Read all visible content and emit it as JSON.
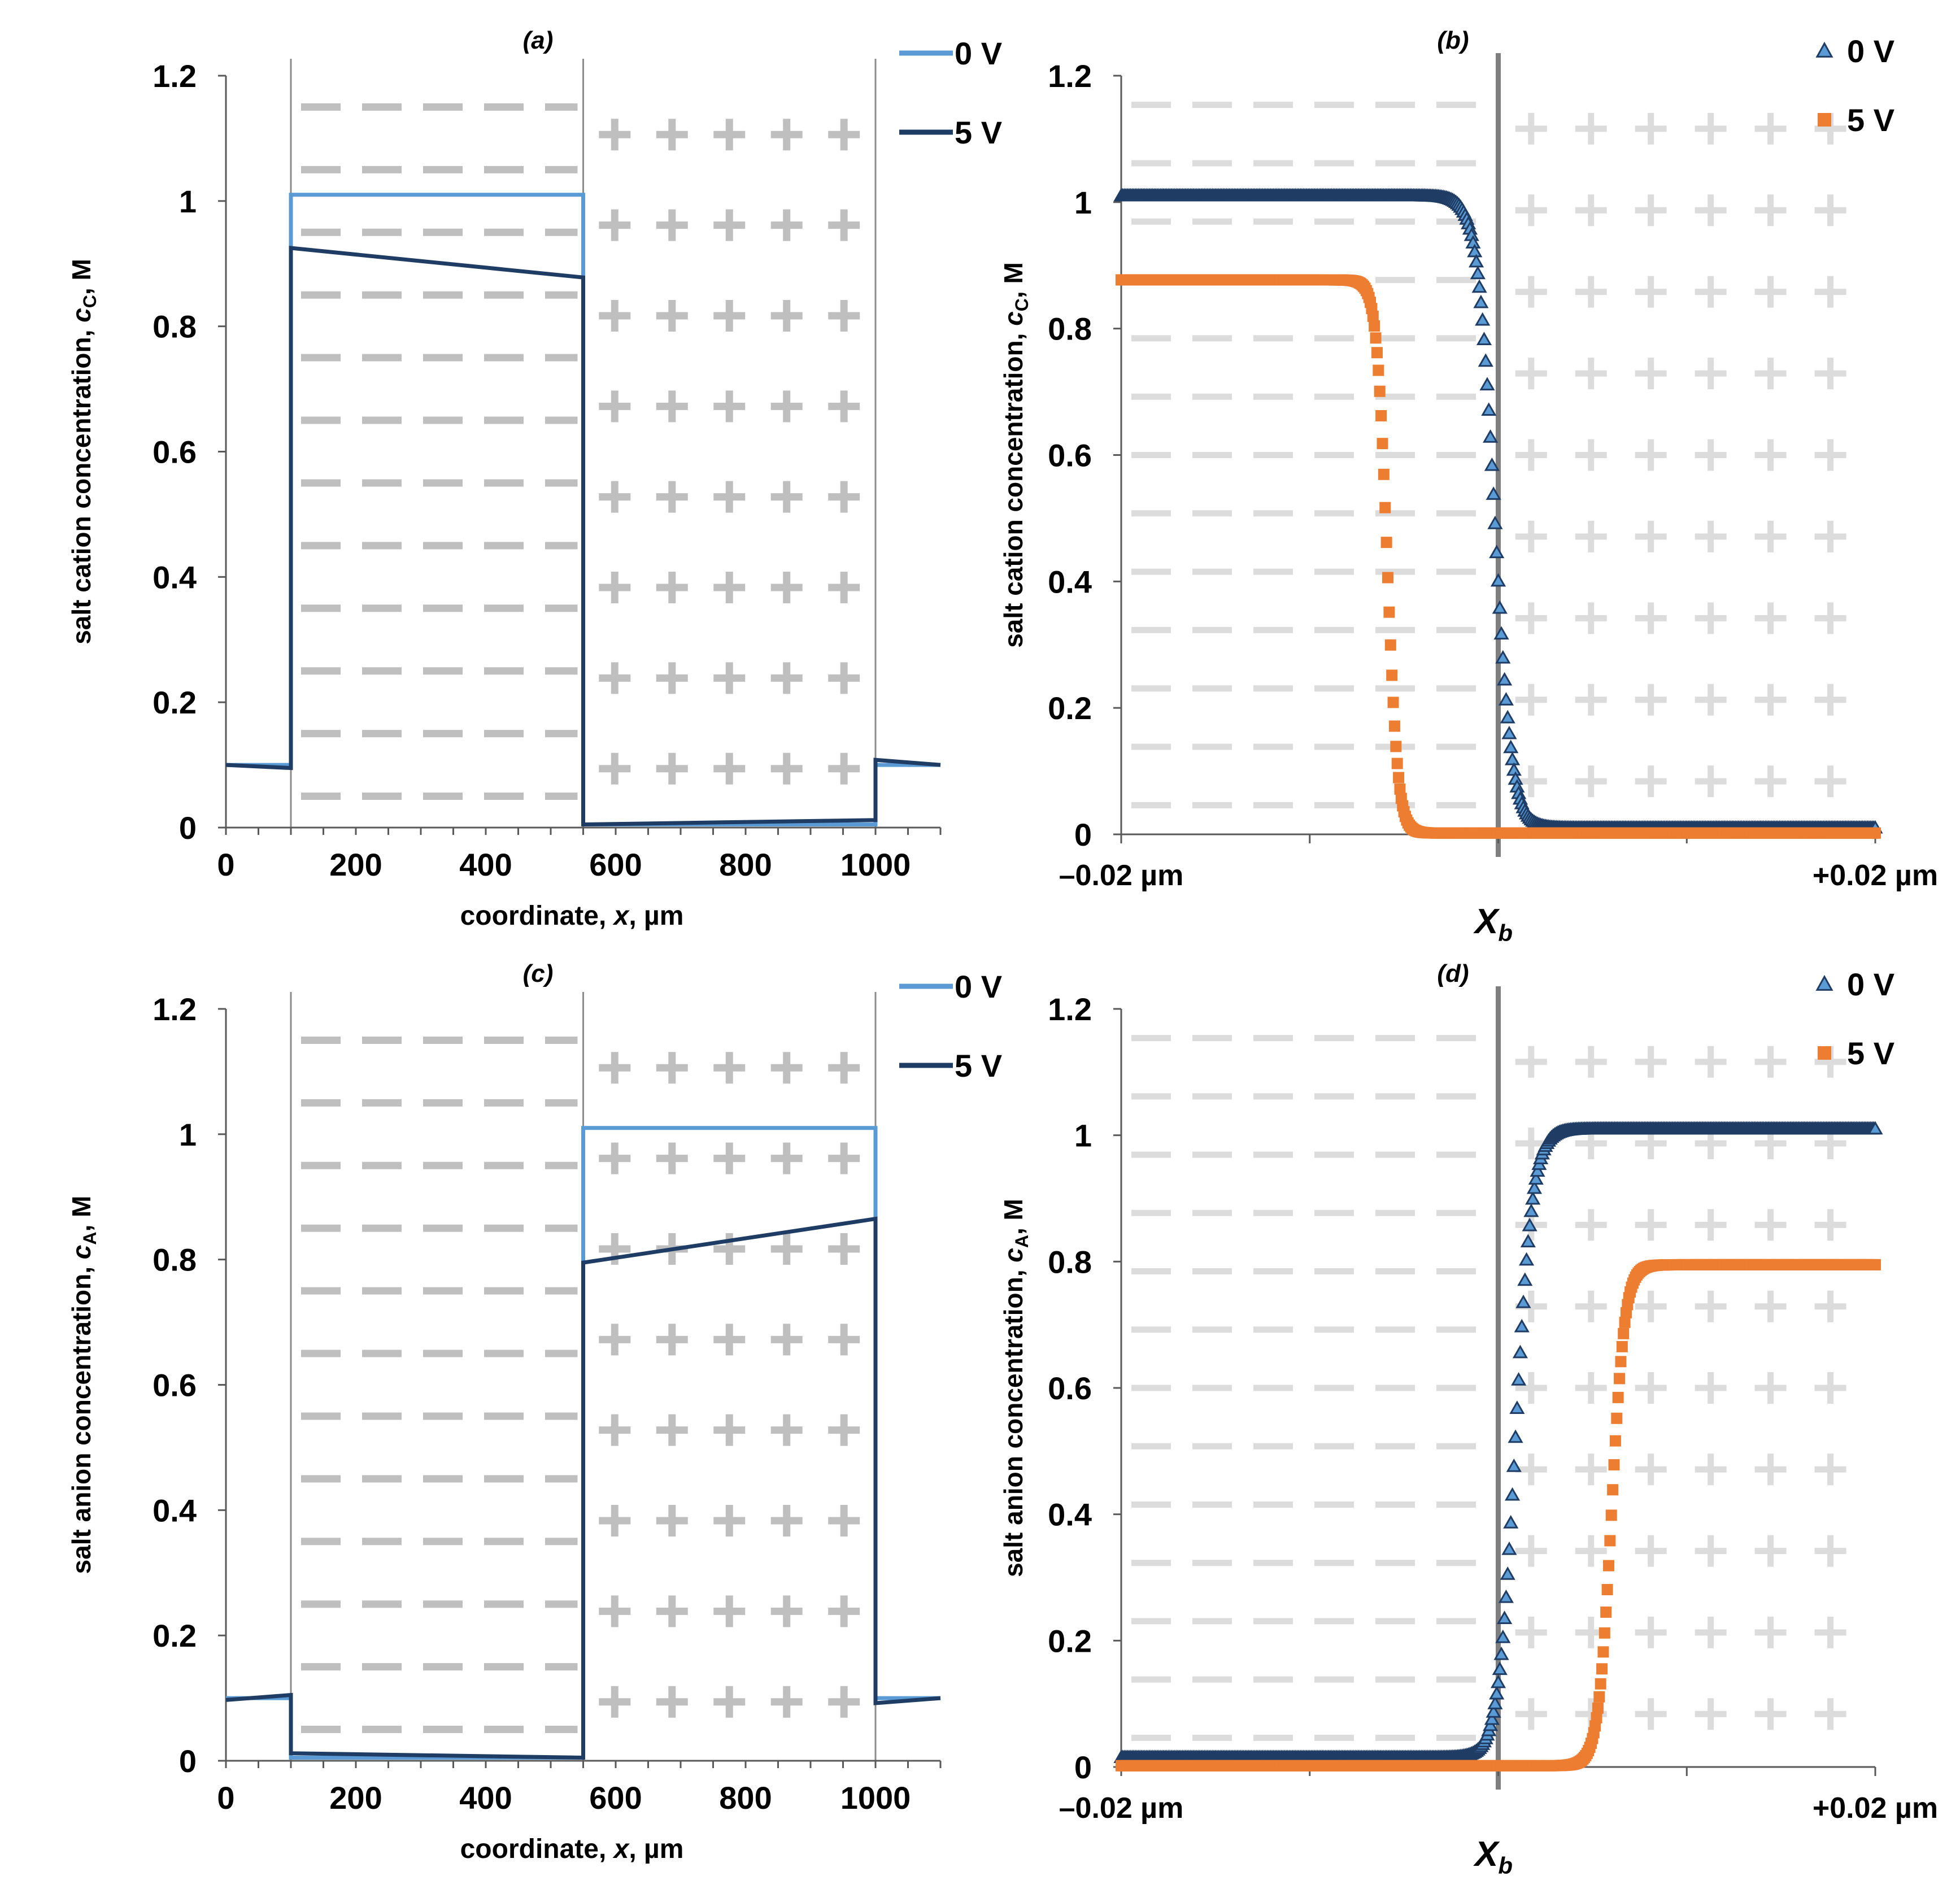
{
  "chart_data": [
    {
      "id": "a",
      "type": "line",
      "title": "(a)",
      "xlabel_pre": "coordinate, ",
      "xlabel_var": "x",
      "xlabel_post": ", µm",
      "ylabel_pre": "salt cation concentration, ",
      "ylabel_var": "c",
      "ylabel_sub": "C",
      "ylabel_post": ", M",
      "xlim": [
        0,
        1100
      ],
      "ylim": [
        0,
        1.2
      ],
      "xticks": [
        0,
        200,
        400,
        600,
        800,
        1000
      ],
      "xtick_labels": [
        "0",
        "200",
        "400",
        "600",
        "800",
        "1000"
      ],
      "yticks": [
        0,
        0.2,
        0.4,
        0.6,
        0.8,
        1,
        1.2
      ],
      "ytick_labels": [
        "0",
        "0.2",
        "0.4",
        "0.6",
        "0.8",
        "1",
        "1.2"
      ],
      "boundaries": [
        100,
        550,
        1000
      ],
      "region_marks": [
        {
          "symbol": "minus",
          "x_range": [
            100,
            550
          ]
        },
        {
          "symbol": "plus",
          "x_range": [
            550,
            1000
          ]
        }
      ],
      "series": [
        {
          "name": "0 V",
          "color": "#5b9bd5",
          "points": [
            [
              0,
              0.1
            ],
            [
              100,
              0.1
            ],
            [
              100,
              1.01
            ],
            [
              550,
              1.01
            ],
            [
              550,
              0.005
            ],
            [
              1000,
              0.005
            ],
            [
              1000,
              0.1
            ],
            [
              1100,
              0.1
            ]
          ]
        },
        {
          "name": "5 V",
          "color": "#1f3c64",
          "points": [
            [
              0,
              0.1
            ],
            [
              100,
              0.095
            ],
            [
              100,
              0.925
            ],
            [
              550,
              0.878
            ],
            [
              550,
              0.005
            ],
            [
              1000,
              0.012
            ],
            [
              1000,
              0.108
            ],
            [
              1100,
              0.1
            ]
          ]
        }
      ]
    },
    {
      "id": "b",
      "type": "scatter",
      "title": "(b)",
      "ylabel_pre": "salt cation concentration, ",
      "ylabel_var": "c",
      "ylabel_sub": "C",
      "ylabel_post": ", M",
      "xlim": [
        -0.02,
        0.02
      ],
      "ylim": [
        0,
        1.2
      ],
      "xtick_values": [
        -0.02,
        -0.01,
        0,
        0.01,
        0.02
      ],
      "xtick_labels": [
        {
          "value": -0.02,
          "text": "–0.02 µm"
        },
        {
          "value": 0.02,
          "text": "+0.02 µm"
        }
      ],
      "boundary_label": "X",
      "boundary_label_sub": "b",
      "boundary_x": 0,
      "yticks": [
        0,
        0.2,
        0.4,
        0.6,
        0.8,
        1,
        1.2
      ],
      "ytick_labels": [
        "0",
        "0.2",
        "0.4",
        "0.6",
        "0.8",
        "1",
        "1.2"
      ],
      "region_marks": [
        {
          "symbol": "minus",
          "x_range": [
            -0.02,
            0
          ]
        },
        {
          "symbol": "plus",
          "x_range": [
            0,
            0.02
          ]
        }
      ],
      "series": [
        {
          "name": "0 V",
          "marker": "triangle",
          "color": "#5b9bd5",
          "edge": "#1f3c64",
          "high": 1.01,
          "low": 0.01,
          "center": -0.0002,
          "width": 0.00045,
          "direction": "falling"
        },
        {
          "name": "5 V",
          "marker": "square",
          "color": "#ed7d31",
          "high": 0.877,
          "low": 0.002,
          "center": -0.0059,
          "width": 0.00028,
          "direction": "falling"
        }
      ]
    },
    {
      "id": "c",
      "type": "line",
      "title": "(c)",
      "xlabel_pre": "coordinate, ",
      "xlabel_var": "x",
      "xlabel_post": ", µm",
      "ylabel_pre": "salt anion concentration, ",
      "ylabel_var": "c",
      "ylabel_sub": "A",
      "ylabel_post": ", M",
      "xlim": [
        0,
        1100
      ],
      "ylim": [
        0,
        1.2
      ],
      "xticks": [
        0,
        200,
        400,
        600,
        800,
        1000
      ],
      "xtick_labels": [
        "0",
        "200",
        "400",
        "600",
        "800",
        "1000"
      ],
      "yticks": [
        0,
        0.2,
        0.4,
        0.6,
        0.8,
        1,
        1.2
      ],
      "ytick_labels": [
        "0",
        "0.2",
        "0.4",
        "0.6",
        "0.8",
        "1",
        "1.2"
      ],
      "boundaries": [
        100,
        550,
        1000
      ],
      "region_marks": [
        {
          "symbol": "minus",
          "x_range": [
            100,
            550
          ]
        },
        {
          "symbol": "plus",
          "x_range": [
            550,
            1000
          ]
        }
      ],
      "series": [
        {
          "name": "0 V",
          "color": "#5b9bd5",
          "points": [
            [
              0,
              0.1
            ],
            [
              100,
              0.1
            ],
            [
              100,
              0.005
            ],
            [
              550,
              0.005
            ],
            [
              550,
              1.01
            ],
            [
              1000,
              1.01
            ],
            [
              1000,
              0.1
            ],
            [
              1100,
              0.1
            ]
          ]
        },
        {
          "name": "5 V",
          "color": "#1f3c64",
          "points": [
            [
              0,
              0.097
            ],
            [
              100,
              0.105
            ],
            [
              100,
              0.012
            ],
            [
              550,
              0.005
            ],
            [
              550,
              0.795
            ],
            [
              1000,
              0.865
            ],
            [
              1000,
              0.092
            ],
            [
              1100,
              0.1
            ]
          ]
        }
      ]
    },
    {
      "id": "d",
      "type": "scatter",
      "title": "(d)",
      "ylabel_pre": "salt anion concentration, ",
      "ylabel_var": "c",
      "ylabel_sub": "A",
      "ylabel_post": ", M",
      "xlim": [
        -0.02,
        0.02
      ],
      "ylim": [
        0,
        1.2
      ],
      "xtick_values": [
        -0.02,
        -0.01,
        0,
        0.01,
        0.02
      ],
      "xtick_labels": [
        {
          "value": -0.02,
          "text": "–0.02 µm"
        },
        {
          "value": 0.02,
          "text": "+0.02 µm"
        }
      ],
      "boundary_label": "X",
      "boundary_label_sub": "b",
      "boundary_x": 0,
      "yticks": [
        0,
        0.2,
        0.4,
        0.6,
        0.8,
        1,
        1.2
      ],
      "ytick_labels": [
        "0",
        "0.2",
        "0.4",
        "0.6",
        "0.8",
        "1",
        "1.2"
      ],
      "region_marks": [
        {
          "symbol": "minus",
          "x_range": [
            -0.02,
            0
          ]
        },
        {
          "symbol": "plus",
          "x_range": [
            0,
            0.02
          ]
        }
      ],
      "series": [
        {
          "name": "0 V",
          "marker": "triangle",
          "color": "#5b9bd5",
          "edge": "#1f3c64",
          "high": 1.01,
          "low": 0.015,
          "center": 0.0009,
          "width": 0.00045,
          "direction": "rising"
        },
        {
          "name": "5 V",
          "marker": "square",
          "color": "#ed7d31",
          "high": 0.795,
          "low": 0.002,
          "center": 0.006,
          "width": 0.00035,
          "direction": "rising"
        }
      ]
    }
  ]
}
